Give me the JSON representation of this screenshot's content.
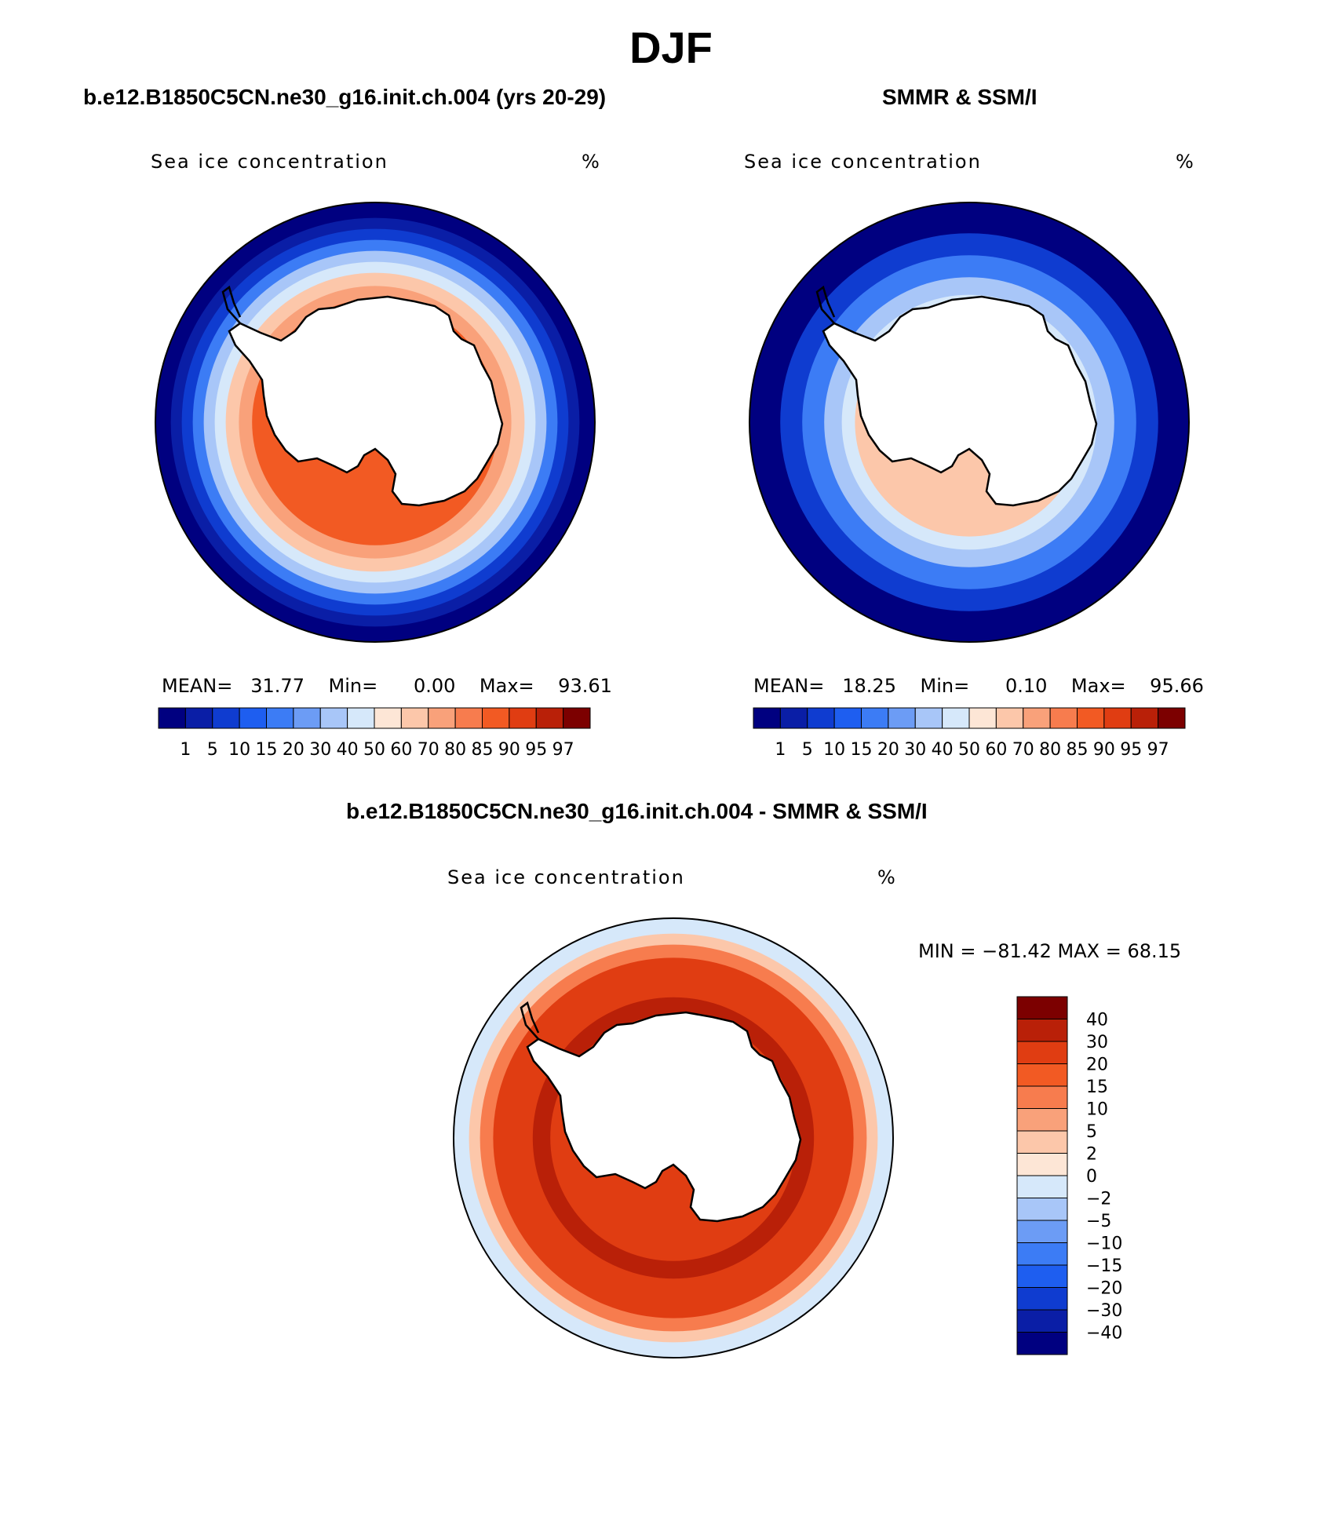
{
  "main_title": "DJF",
  "panels": [
    {
      "title": "b.e12.B1850C5CN.ne30_g16.init.ch.004 (yrs 20-29)",
      "variable": "Sea ice concentration",
      "units": "%",
      "stats": {
        "mean_label": "MEAN=",
        "mean": "31.77",
        "min_label": "Min=",
        "min": "0.00",
        "max_label": "Max=",
        "max": "93.61"
      }
    },
    {
      "title": "SMMR & SSM/I",
      "variable": "Sea ice concentration",
      "units": "%",
      "stats": {
        "mean_label": "MEAN=",
        "mean": "18.25",
        "min_label": "Min=",
        "min": "0.10",
        "max_label": "Max=",
        "max": "95.66"
      }
    },
    {
      "title": "b.e12.B1850C5CN.ne30_g16.init.ch.004 - SMMR & SSM/I",
      "variable": "Sea ice concentration",
      "units": "%",
      "range_text": "MIN =  −81.42  MAX =   68.15"
    }
  ],
  "colorbar_abs": {
    "levels": [
      "1",
      "5",
      "10",
      "15",
      "20",
      "30",
      "40",
      "50",
      "60",
      "70",
      "80",
      "85",
      "90",
      "95",
      "97"
    ],
    "colors": [
      "#000080",
      "#0a1ea6",
      "#0f3cd0",
      "#1e5ef0",
      "#3c7cf5",
      "#6c9cf5",
      "#a8c6f8",
      "#d6e8fa",
      "#fde6d6",
      "#fcc7aa",
      "#f9a17a",
      "#f77c4e",
      "#f25a23",
      "#e03d12",
      "#b92008",
      "#7c0000"
    ]
  },
  "colorbar_diff": {
    "levels": [
      "40",
      "30",
      "20",
      "15",
      "10",
      "5",
      "2",
      "0",
      "−2",
      "−5",
      "−10",
      "−15",
      "−20",
      "−30",
      "−40"
    ],
    "colors": [
      "#7c0000",
      "#b92008",
      "#e03d12",
      "#f25a23",
      "#f77c4e",
      "#f9a17a",
      "#fcc7aa",
      "#fde6d6",
      "#d6e8fa",
      "#a8c6f8",
      "#6c9cf5",
      "#3c7cf5",
      "#1e5ef0",
      "#0f3cd0",
      "#0a1ea6",
      "#000080"
    ]
  },
  "maps": [
    {
      "name": "model",
      "rings": [
        {
          "r": 1.0,
          "color": "#000080"
        },
        {
          "r": 0.93,
          "color": "#0a1ea6"
        },
        {
          "r": 0.88,
          "color": "#0f3cd0"
        },
        {
          "r": 0.83,
          "color": "#3c7cf5"
        },
        {
          "r": 0.78,
          "color": "#a8c6f8"
        },
        {
          "r": 0.73,
          "color": "#d6e8fa"
        },
        {
          "r": 0.68,
          "color": "#fcc7aa"
        },
        {
          "r": 0.62,
          "color": "#f9a17a"
        },
        {
          "r": 0.56,
          "color": "#f25a23"
        }
      ]
    },
    {
      "name": "obs",
      "rings": [
        {
          "r": 1.0,
          "color": "#000080"
        },
        {
          "r": 0.86,
          "color": "#0f3cd0"
        },
        {
          "r": 0.76,
          "color": "#3c7cf5"
        },
        {
          "r": 0.66,
          "color": "#a8c6f8"
        },
        {
          "r": 0.58,
          "color": "#d6e8fa"
        },
        {
          "r": 0.52,
          "color": "#fcc7aa"
        }
      ]
    },
    {
      "name": "diff",
      "rings": [
        {
          "r": 1.0,
          "color": "#d6e8fa"
        },
        {
          "r": 0.93,
          "color": "#fcc7aa"
        },
        {
          "r": 0.88,
          "color": "#f77c4e"
        },
        {
          "r": 0.82,
          "color": "#e03d12"
        },
        {
          "r": 0.64,
          "color": "#b92008"
        },
        {
          "r": 0.56,
          "color": "#e03d12"
        }
      ]
    }
  ]
}
